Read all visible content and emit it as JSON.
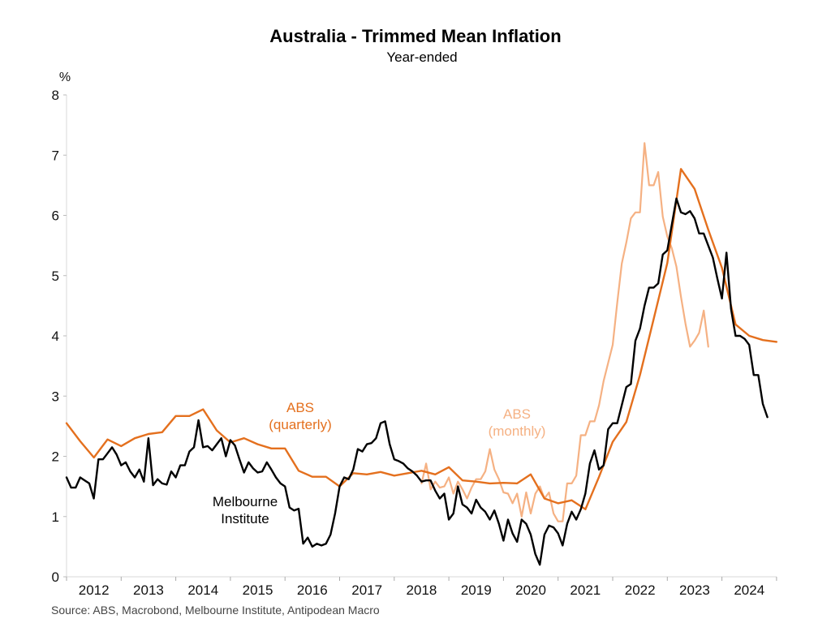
{
  "chart_data": {
    "type": "line",
    "title": "Australia - Trimmed Mean Inflation",
    "subtitle": "Year-ended",
    "ylabel": "%",
    "xlabel": "",
    "ylim": [
      0,
      8
    ],
    "yticks": [
      0,
      1,
      2,
      3,
      4,
      5,
      6,
      7,
      8
    ],
    "xlim": [
      2012.0,
      2025.0
    ],
    "xtick_labels": [
      "2012",
      "2013",
      "2014",
      "2015",
      "2016",
      "2017",
      "2018",
      "2019",
      "2020",
      "2021",
      "2022",
      "2023",
      "2024"
    ],
    "grid": false,
    "legend": "inline annotations",
    "source": "Source: ABS, Macrobond, Melbourne Institute, Antipodean Macro",
    "series": [
      {
        "name": "Melbourne Institute",
        "label_lines": [
          "Melbourne",
          "Institute"
        ],
        "color": "#000000",
        "frequency": "monthly",
        "start": 2012.0,
        "step": 0.08333,
        "values": [
          1.65,
          1.48,
          1.48,
          1.65,
          1.6,
          1.55,
          1.3,
          1.95,
          1.95,
          2.05,
          2.15,
          2.03,
          1.85,
          1.9,
          1.75,
          1.65,
          1.78,
          1.58,
          2.3,
          1.52,
          1.62,
          1.55,
          1.53,
          1.75,
          1.65,
          1.85,
          1.85,
          2.08,
          2.15,
          2.6,
          2.15,
          2.17,
          2.1,
          2.2,
          2.3,
          2.0,
          2.27,
          2.18,
          1.95,
          1.73,
          1.9,
          1.8,
          1.73,
          1.75,
          1.9,
          1.78,
          1.65,
          1.55,
          1.5,
          1.15,
          1.1,
          1.13,
          0.55,
          0.65,
          0.5,
          0.55,
          0.52,
          0.55,
          0.7,
          1.05,
          1.5,
          1.65,
          1.62,
          1.78,
          2.12,
          2.08,
          2.2,
          2.22,
          2.3,
          2.55,
          2.58,
          2.2,
          1.95,
          1.92,
          1.88,
          1.8,
          1.75,
          1.68,
          1.58,
          1.6,
          1.6,
          1.43,
          1.3,
          1.38,
          0.95,
          1.05,
          1.5,
          1.2,
          1.15,
          1.05,
          1.28,
          1.15,
          1.08,
          0.95,
          1.1,
          0.88,
          0.6,
          0.95,
          0.72,
          0.58,
          0.95,
          0.88,
          0.7,
          0.38,
          0.2,
          0.7,
          0.85,
          0.82,
          0.72,
          0.52,
          0.88,
          1.08,
          0.95,
          1.12,
          1.38,
          1.88,
          2.1,
          1.78,
          1.85,
          2.45,
          2.55,
          2.55,
          2.85,
          3.15,
          3.2,
          3.92,
          4.12,
          4.5,
          4.8,
          4.8,
          4.87,
          5.35,
          5.42,
          5.85,
          6.28,
          6.05,
          6.02,
          6.07,
          5.95,
          5.7,
          5.7,
          5.5,
          5.3,
          4.95,
          4.62,
          5.38,
          4.45,
          4.0,
          4.0,
          3.95,
          3.85,
          3.35,
          3.35,
          2.87,
          2.65
        ]
      },
      {
        "name": "ABS (quarterly)",
        "label_lines": [
          "ABS",
          "(quarterly)"
        ],
        "color": "#E4701E",
        "frequency": "quarterly",
        "start": 2012.0,
        "step": 0.25,
        "values": [
          2.55,
          2.25,
          1.98,
          2.28,
          2.17,
          2.3,
          2.37,
          2.4,
          2.67,
          2.67,
          2.78,
          2.43,
          2.23,
          2.3,
          2.2,
          2.13,
          2.13,
          1.76,
          1.66,
          1.66,
          1.5,
          1.72,
          1.7,
          1.74,
          1.68,
          1.72,
          1.76,
          1.7,
          1.82,
          1.6,
          1.58,
          1.55,
          1.56,
          1.55,
          1.7,
          1.3,
          1.22,
          1.27,
          1.12,
          1.66,
          2.24,
          2.57,
          3.35,
          4.28,
          5.21,
          6.77,
          6.44,
          5.76,
          5.13,
          4.19,
          4.0,
          3.93,
          3.9
        ]
      },
      {
        "name": "ABS (monthly)",
        "label_lines": [
          "ABS",
          "(monthly)"
        ],
        "color": "#F5B183",
        "frequency": "monthly",
        "start": 2018.5,
        "step": 0.08333,
        "values": [
          1.55,
          1.88,
          1.45,
          1.58,
          1.48,
          1.5,
          1.65,
          1.38,
          1.58,
          1.45,
          1.3,
          1.48,
          1.62,
          1.62,
          1.75,
          2.12,
          1.78,
          1.62,
          1.4,
          1.38,
          1.22,
          1.38,
          1.0,
          1.4,
          1.05,
          1.38,
          1.5,
          1.3,
          1.4,
          1.05,
          0.92,
          0.92,
          1.55,
          1.55,
          1.68,
          2.35,
          2.35,
          2.58,
          2.58,
          2.85,
          3.25,
          3.55,
          3.85,
          4.55,
          5.2,
          5.55,
          5.95,
          6.05,
          6.05,
          7.2,
          6.5,
          6.5,
          6.72,
          5.98,
          5.65,
          5.45,
          5.15,
          4.65,
          4.2,
          3.82,
          3.92,
          4.05,
          4.42,
          3.82
        ]
      }
    ]
  }
}
